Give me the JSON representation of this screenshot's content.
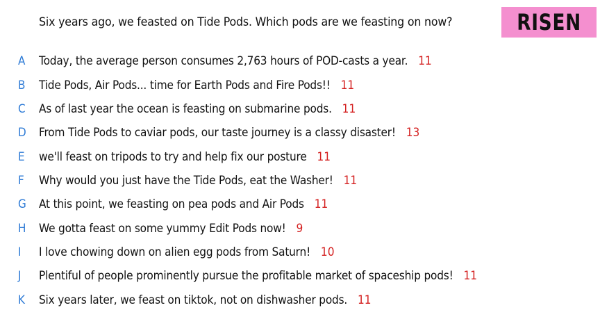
{
  "question": "Six years ago, we feasted on Tide Pods. Which pods are we feasting on now?",
  "badge": "RISEN",
  "colors": {
    "badge_bg": "#f48fcf",
    "letter": "#2e7bd6",
    "count": "#d42020",
    "text": "#111111"
  },
  "answers": [
    {
      "letter": "A",
      "text": "Today, the average person consumes 2,763 hours of POD-casts a year.",
      "count": "11"
    },
    {
      "letter": "B",
      "text": "Tide Pods, Air Pods... time for Earth Pods and Fire Pods!!",
      "count": "11"
    },
    {
      "letter": "C",
      "text": "As of last year the ocean is feasting on submarine pods.",
      "count": "11"
    },
    {
      "letter": "D",
      "text": "From Tide Pods to caviar pods, our taste journey is a classy disaster!",
      "count": "13"
    },
    {
      "letter": "E",
      "text": "we'll feast on tripods to try and help fix our posture",
      "count": "11"
    },
    {
      "letter": "F",
      "text": "Why would you just have the Tide Pods, eat the Washer!",
      "count": "11"
    },
    {
      "letter": "G",
      "text": "At this point, we feasting on pea pods and Air Pods",
      "count": "11"
    },
    {
      "letter": "H",
      "text": "We gotta feast on some yummy Edit Pods now!",
      "count": "9"
    },
    {
      "letter": "I",
      "text": "I love chowing down on alien egg pods from Saturn!",
      "count": "10"
    },
    {
      "letter": "J",
      "text": "Plentiful of people prominently pursue the profitable market of spaceship pods!",
      "count": "11"
    },
    {
      "letter": "K",
      "text": "Six years later, we feast on tiktok, not on dishwasher pods.",
      "count": "11"
    }
  ]
}
